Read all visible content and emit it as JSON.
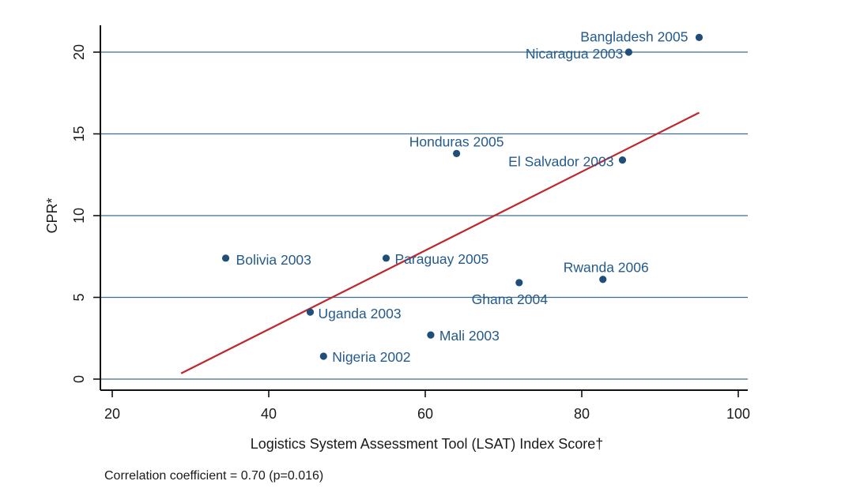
{
  "chart_data": {
    "type": "scatter",
    "title": "",
    "xlabel": "Logistics System Assessment Tool (LSAT) Index Score†",
    "ylabel": "CPR*",
    "xlim": [
      20,
      100
    ],
    "ylim": [
      0,
      22
    ],
    "x_ticks": [
      "20",
      "40",
      "60",
      "80",
      "100"
    ],
    "y_ticks": [
      "0",
      "5",
      "10",
      "15",
      "20"
    ],
    "grid": "horizontal",
    "points": [
      {
        "label": "Bangladesh 2005",
        "x": 95,
        "y": 20.9
      },
      {
        "label": "Nicaragua 2003",
        "x": 86,
        "y": 20.0
      },
      {
        "label": "Honduras 2005",
        "x": 64,
        "y": 13.8
      },
      {
        "label": "El Salvador 2003",
        "x": 85.2,
        "y": 13.4
      },
      {
        "label": "Bolivia 2003",
        "x": 34.5,
        "y": 7.4
      },
      {
        "label": "Paraguay 2005",
        "x": 55,
        "y": 7.4
      },
      {
        "label": "Rwanda 2006",
        "x": 82.7,
        "y": 6.1
      },
      {
        "label": "Ghana 2004",
        "x": 72,
        "y": 5.9
      },
      {
        "label": "Uganda 2003",
        "x": 45.3,
        "y": 4.1
      },
      {
        "label": "Mali 2003",
        "x": 60.7,
        "y": 2.7
      },
      {
        "label": "Nigeria 2002",
        "x": 47,
        "y": 1.4
      }
    ],
    "fit_line": {
      "x": [
        28.8,
        95
      ],
      "y": [
        0.35,
        16.3
      ]
    },
    "colors": {
      "points": "#1f4e79",
      "labels": "#245a8c",
      "fit": "#c0272d",
      "grid": "#3a6e8f"
    }
  },
  "footnote": "Correlation coefficient = 0.70 (p=0.016)"
}
